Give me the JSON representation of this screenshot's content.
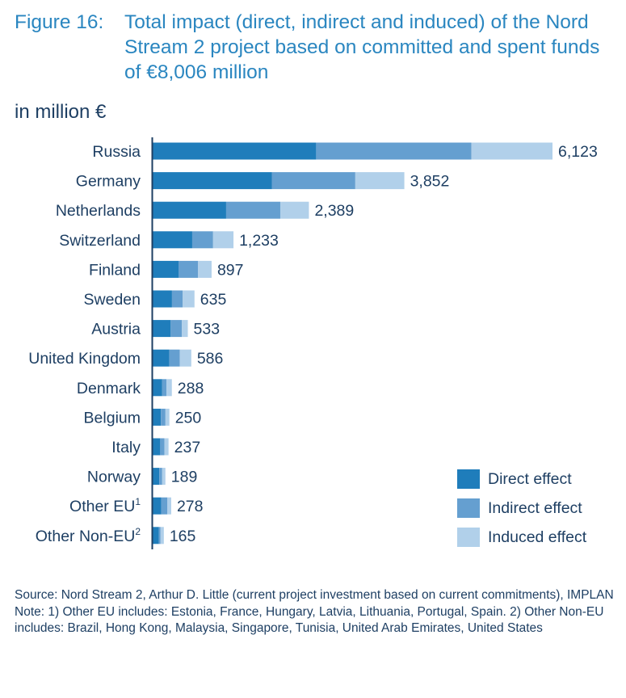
{
  "figure": {
    "label": "Figure 16:",
    "title": "Total impact (direct, indirect and induced) of the Nord Stream 2 project based on committed and spent funds of €8,006 million"
  },
  "colors": {
    "direct": "#1f7dbb",
    "indirect": "#659fd0",
    "induced": "#b1d0ea",
    "axis": "#1e3f63",
    "text": "#1e3f63",
    "title": "#2a86c0"
  },
  "chart_data": {
    "type": "bar",
    "orientation": "horizontal",
    "stacked": true,
    "unit_label": "in million €",
    "categories": [
      "Russia",
      "Germany",
      "Netherlands",
      "Switzerland",
      "Finland",
      "Sweden",
      "Austria",
      "United Kingdom",
      "Denmark",
      "Belgium",
      "Italy",
      "Norway",
      "Other EU",
      "Other Non-EU"
    ],
    "category_superscripts": [
      "",
      "",
      "",
      "",
      "",
      "",
      "",
      "",
      "",
      "",
      "",
      "",
      "1",
      "2"
    ],
    "series": [
      {
        "name": "Direct effect",
        "values": [
          2500,
          1820,
          1120,
          600,
          390,
          290,
          270,
          250,
          140,
          120,
          110,
          95,
          125,
          90
        ]
      },
      {
        "name": "Indirect effect",
        "values": [
          2380,
          1280,
          830,
          320,
          300,
          165,
          170,
          160,
          65,
          70,
          65,
          45,
          95,
          25
        ]
      },
      {
        "name": "Induced effect",
        "values": [
          1243,
          752,
          439,
          313,
          207,
          180,
          93,
          176,
          83,
          60,
          62,
          49,
          58,
          50
        ]
      }
    ],
    "total_labels": [
      "6,123",
      "3,852",
      "2,389",
      "1,233",
      "897",
      "635",
      "533",
      "586",
      "288",
      "250",
      "237",
      "189",
      "278",
      "165"
    ],
    "xlim": [
      0,
      6123
    ],
    "grid": false,
    "legend": "bottom-right"
  },
  "footer": {
    "source": "Source: Nord Stream 2, Arthur D. Little (current project investment based on current commitments), IMPLAN",
    "note": "Note: 1) Other EU includes: Estonia, France, Hungary, Latvia, Lithuania, Portugal, Spain. 2) Other Non-EU includes: Brazil, Hong Kong, Malaysia, Singapore, Tunisia, United Arab Emirates, United States"
  }
}
